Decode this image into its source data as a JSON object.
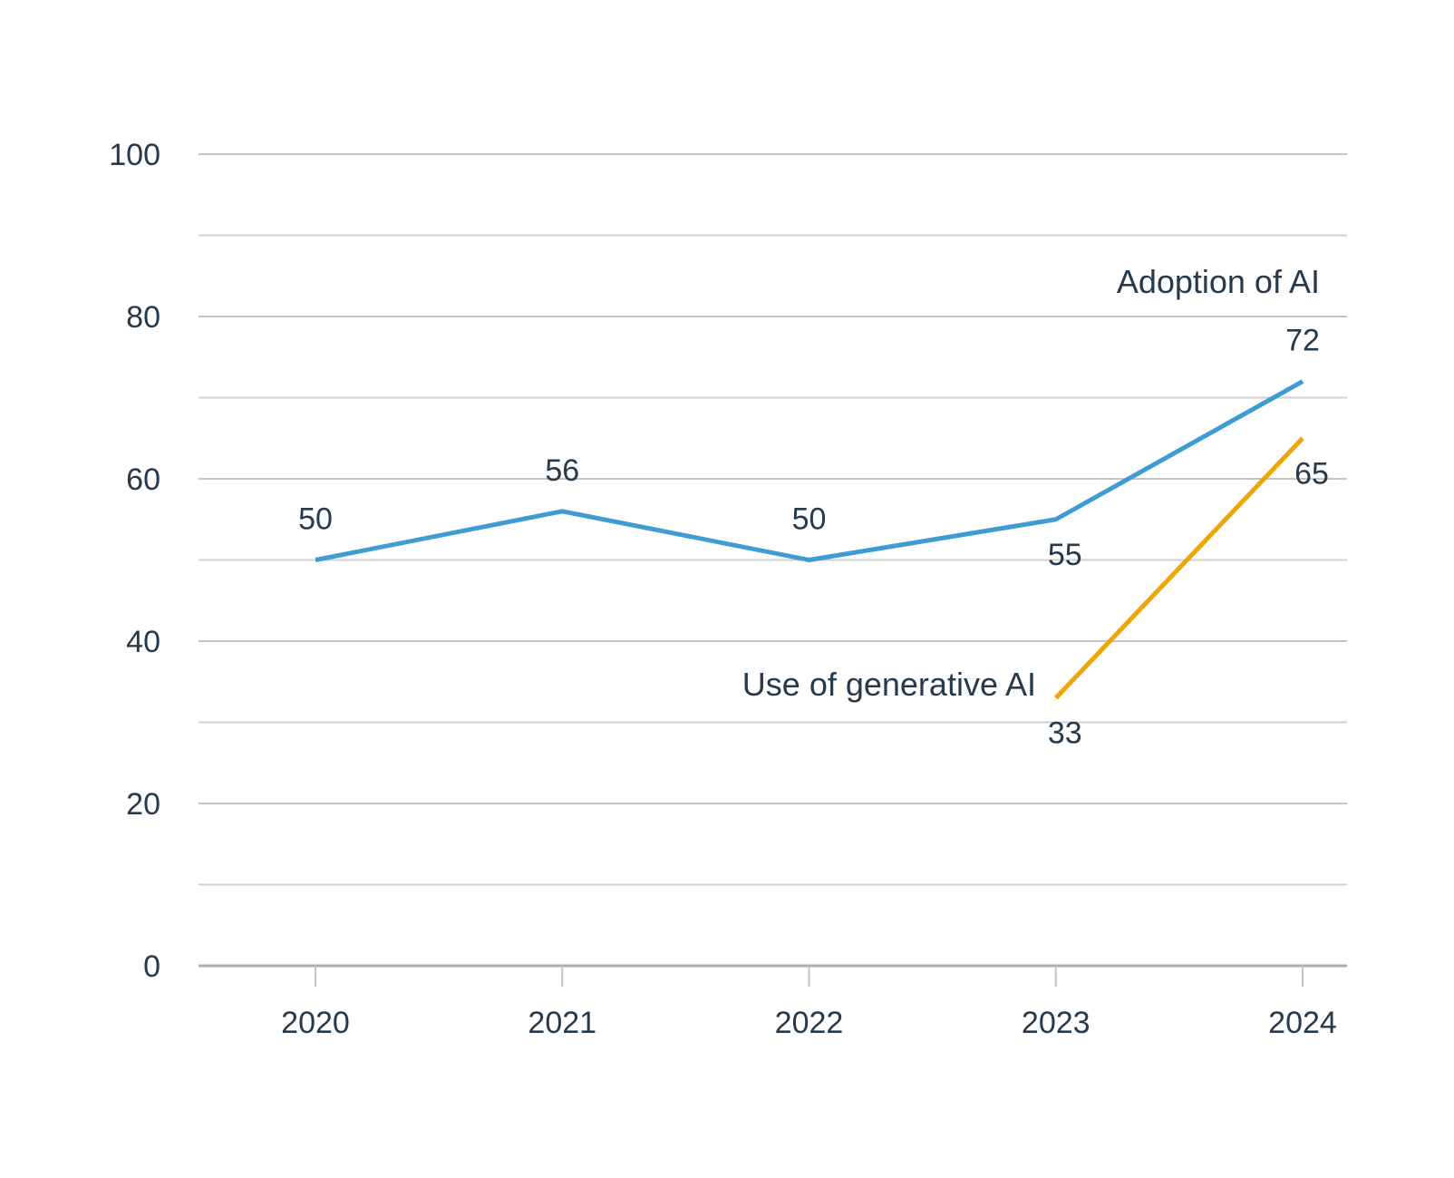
{
  "chart_data": {
    "type": "line",
    "title": "",
    "x_labels": [
      "2020",
      "2021",
      "2022",
      "2023",
      "2024"
    ],
    "y_ticks": [
      0,
      20,
      40,
      60,
      80,
      100
    ],
    "y_minor_step": 10,
    "ylim": [
      0,
      100
    ],
    "grid": "horizontal",
    "legend_position": "inline-labels-near-lines",
    "series": [
      {
        "name": "Adoption of AI",
        "color": "#3f9bd4",
        "points": [
          {
            "x": "2020",
            "y": 50,
            "label": "50",
            "label_side": "above"
          },
          {
            "x": "2021",
            "y": 56,
            "label": "56",
            "label_side": "above"
          },
          {
            "x": "2022",
            "y": 50,
            "label": "50",
            "label_side": "above"
          },
          {
            "x": "2023",
            "y": 55,
            "label": "55",
            "label_side": "below"
          },
          {
            "x": "2024",
            "y": 72,
            "label": "72",
            "label_side": "above"
          }
        ]
      },
      {
        "name": "Use of generative AI",
        "color": "#eea508",
        "points": [
          {
            "x": "2023",
            "y": 33,
            "label": "33",
            "label_side": "below"
          },
          {
            "x": "2024",
            "y": 65,
            "label": "65",
            "label_side": "below"
          }
        ]
      }
    ],
    "colors": {
      "text": "#263a4d",
      "grid_major": "#c5c5c5",
      "grid_minor": "#d0d0d0",
      "axis_line": "#ababab",
      "tick": "#c5c5c5",
      "background": "#ffffff"
    }
  }
}
